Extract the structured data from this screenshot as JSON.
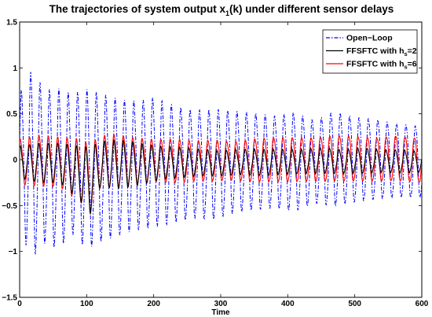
{
  "chart_data": {
    "type": "line",
    "title": {
      "prefix": "The trajectories of system output x",
      "subscript": "1",
      "suffix": "(k) under different sensor delays"
    },
    "xlabel": "Time",
    "ylabel": "",
    "xlim": [
      0,
      600
    ],
    "ylim": [
      -1.5,
      1.5
    ],
    "xticks": [
      0,
      100,
      200,
      300,
      400,
      500,
      600
    ],
    "xtick_labels": [
      "0",
      "100",
      "200",
      "300",
      "400",
      "500",
      "600"
    ],
    "yticks": [
      -1.5,
      -1,
      -0.5,
      0,
      0.5,
      1,
      1.5
    ],
    "ytick_labels": [
      "−1.5",
      "−1",
      "−0.5",
      "0",
      "0.5",
      "1",
      "1.5"
    ],
    "grid": false,
    "legend_position": "top-right",
    "series": [
      {
        "name": "Open−Loop",
        "legend": {
          "base": "Open−Loop",
          "subscript": "",
          "after": ""
        },
        "color": "#0000ff",
        "style": "dash-dot",
        "period": 14,
        "x": [
          0,
          18,
          38,
          58,
          78,
          100,
          120,
          140,
          160,
          180,
          200,
          230,
          260,
          290,
          320,
          350,
          380,
          410,
          440,
          470,
          500,
          530,
          560,
          600
        ],
        "y_peak": [
          0.75,
          1.02,
          0.8,
          0.82,
          0.76,
          0.82,
          0.78,
          0.73,
          0.7,
          0.7,
          0.74,
          0.65,
          0.6,
          0.62,
          0.6,
          0.58,
          0.55,
          0.6,
          0.5,
          0.62,
          0.55,
          0.53,
          0.48,
          0.45
        ],
        "y_trough": [
          -0.8,
          -1.12,
          -0.95,
          -1.02,
          -0.85,
          -1.03,
          -0.95,
          -0.9,
          -0.85,
          -0.82,
          -0.8,
          -0.75,
          -0.7,
          -0.72,
          -0.65,
          -0.62,
          -0.6,
          -0.65,
          -0.55,
          -0.6,
          -0.55,
          -0.52,
          -0.5,
          -0.5
        ]
      },
      {
        "name": "FFSFTC with h_s=2",
        "legend": {
          "base": "FFSFTC with h",
          "subscript": "s",
          "after": "=2"
        },
        "color": "#000000",
        "style": "solid",
        "period": 14,
        "x": [
          0,
          30,
          60,
          90,
          105,
          120,
          150,
          180,
          210,
          240,
          270,
          300,
          330,
          360,
          390,
          420,
          450,
          480,
          510,
          540,
          570,
          600
        ],
        "y_peak": [
          0.15,
          0.18,
          0.18,
          0.15,
          0.14,
          0.2,
          0.22,
          0.18,
          0.15,
          0.14,
          0.12,
          0.1,
          0.12,
          0.12,
          0.12,
          0.12,
          0.14,
          0.12,
          0.14,
          0.12,
          0.12,
          0.1
        ],
        "y_trough": [
          -0.2,
          -0.25,
          -0.25,
          -0.45,
          -0.6,
          -0.3,
          -0.32,
          -0.28,
          -0.22,
          -0.2,
          -0.18,
          -0.18,
          -0.17,
          -0.18,
          -0.17,
          -0.16,
          -0.16,
          -0.16,
          -0.16,
          -0.15,
          -0.16,
          -0.15
        ]
      },
      {
        "name": "FFSFTC with h_s=6",
        "legend": {
          "base": "FFSFTC with h",
          "subscript": "s",
          "after": "=6"
        },
        "color": "#ff0000",
        "style": "solid",
        "period": 14,
        "x": [
          0,
          30,
          60,
          90,
          105,
          120,
          140,
          170,
          200,
          230,
          260,
          290,
          320,
          350,
          380,
          410,
          440,
          470,
          500,
          530,
          560,
          600
        ],
        "y_peak": [
          0.25,
          0.3,
          0.28,
          0.27,
          0.22,
          0.3,
          0.32,
          0.28,
          0.26,
          0.27,
          0.25,
          0.26,
          0.24,
          0.28,
          0.3,
          0.3,
          0.3,
          0.33,
          0.32,
          0.3,
          0.33,
          0.3
        ],
        "y_trough": [
          -0.3,
          -0.32,
          -0.33,
          -0.5,
          -0.65,
          -0.35,
          -0.35,
          -0.3,
          -0.28,
          -0.3,
          -0.28,
          -0.28,
          -0.27,
          -0.3,
          -0.3,
          -0.3,
          -0.3,
          -0.3,
          -0.3,
          -0.3,
          -0.3,
          -0.32
        ]
      }
    ]
  }
}
